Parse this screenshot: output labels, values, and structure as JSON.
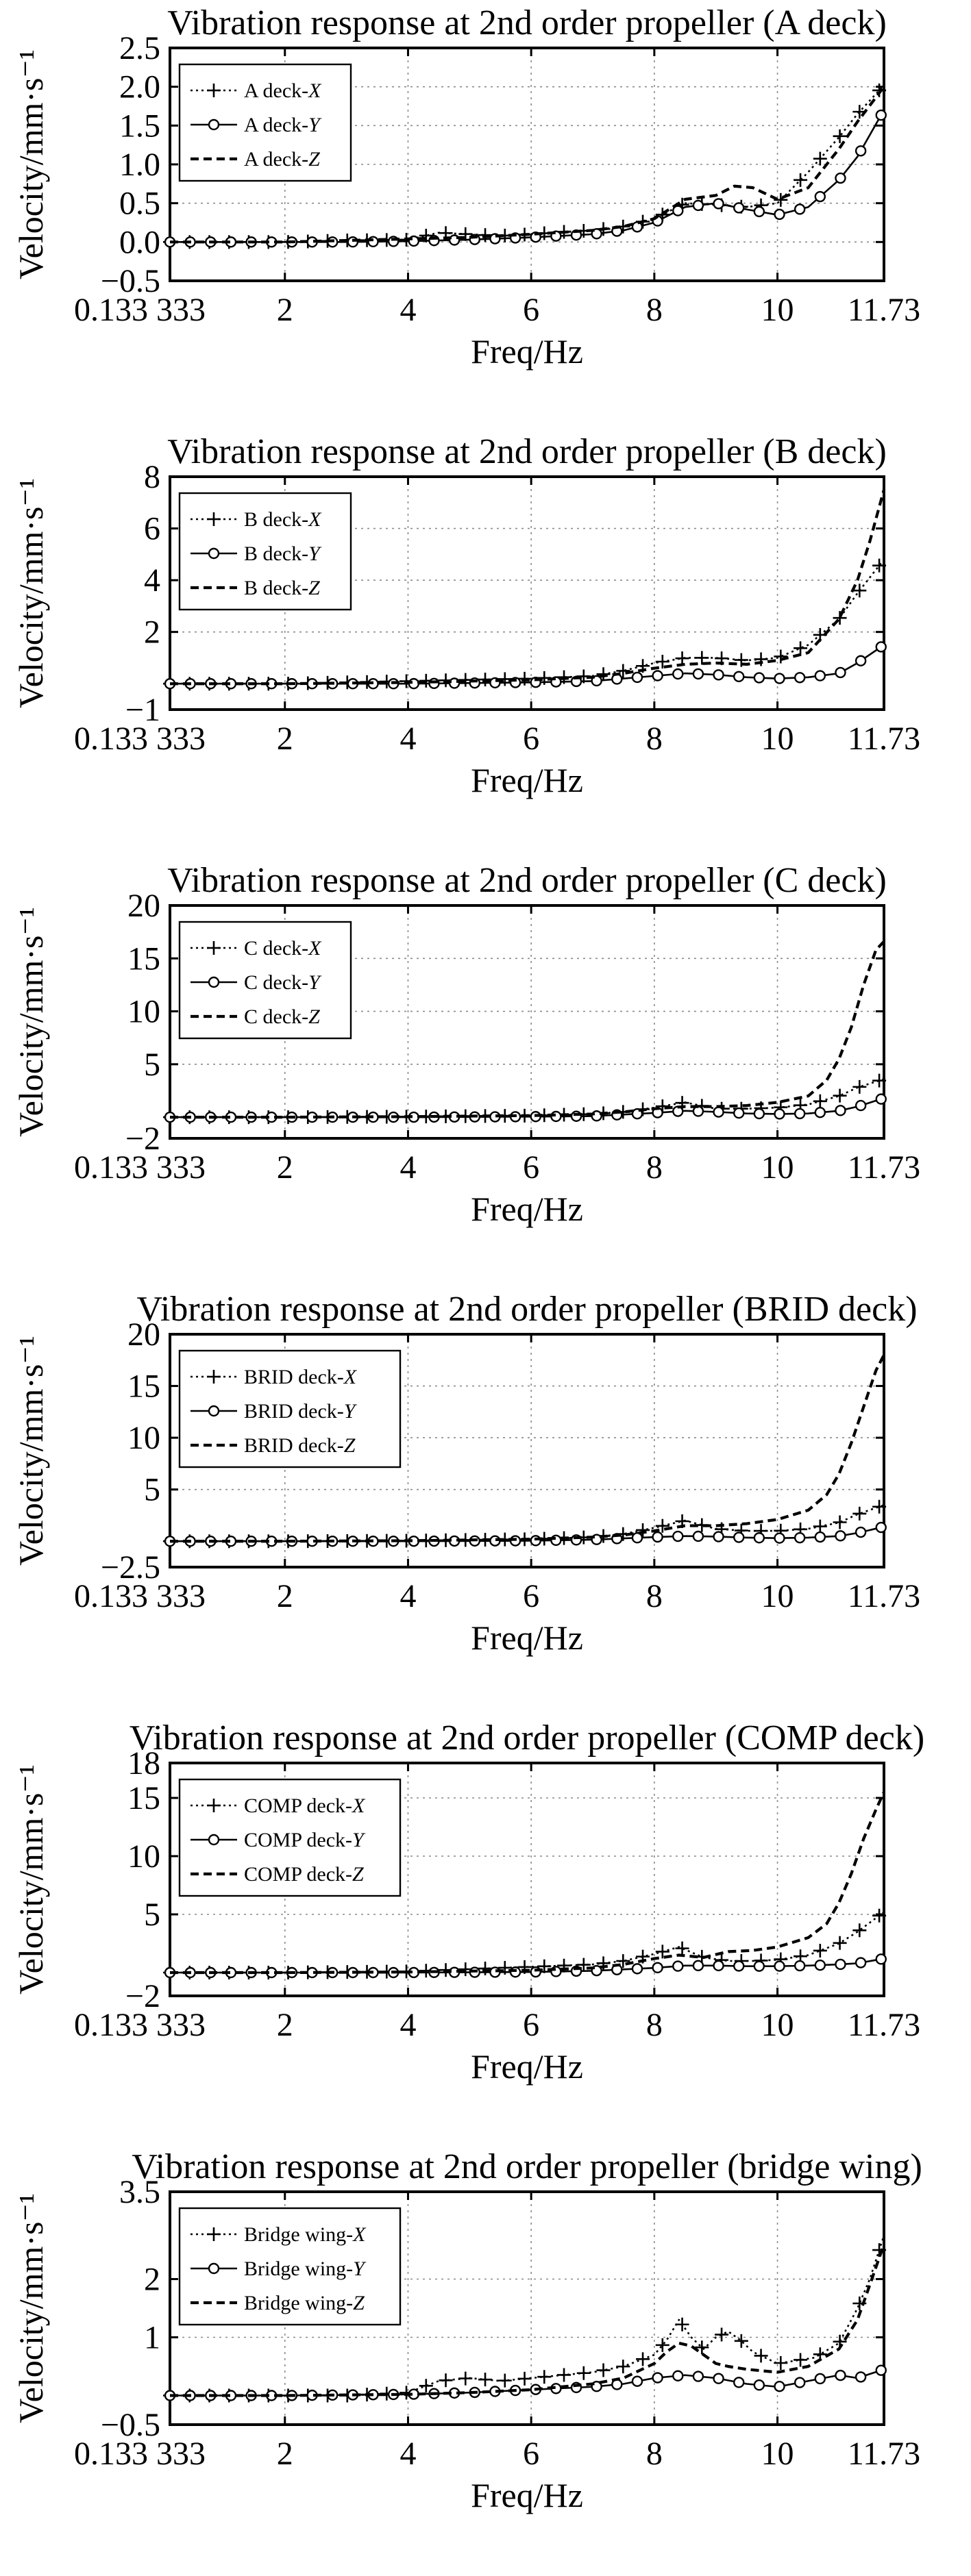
{
  "charts": [
    {
      "type": "line",
      "title": "Vibration response at 2nd order propeller (A deck)",
      "xlabel": "Freq/Hz",
      "ylabel": "Velocity/mm·s⁻¹",
      "xlim": [
        0.133,
        11.73
      ],
      "ylim": [
        -0.5,
        2.5
      ],
      "yticks": [
        "−0.5",
        "0.0",
        "0.5",
        "1.0",
        "1.5",
        "2.0",
        "2.5"
      ],
      "ytick_values": [
        -0.5,
        0,
        0.5,
        1,
        1.5,
        2,
        2.5
      ],
      "xticks": [
        "0.133 333",
        "2",
        "4",
        "6",
        "8",
        "10",
        "11.73"
      ],
      "xtick_values": [
        0.133,
        2,
        4,
        6,
        8,
        10,
        11.73
      ],
      "grid": true,
      "legend_position": "top-left",
      "series": [
        {
          "name_prefix": "A deck-",
          "name_var": "X",
          "style": "plus",
          "x": [
            0.133,
            1,
            2,
            3,
            4,
            4.5,
            5,
            5.5,
            6,
            6.5,
            7,
            7.5,
            8,
            8.5,
            9,
            9.5,
            10,
            10.5,
            11,
            11.3,
            11.73
          ],
          "y": [
            0,
            0,
            0,
            0.02,
            0.03,
            0.12,
            0.1,
            0.08,
            0.1,
            0.13,
            0.15,
            0.2,
            0.3,
            0.5,
            0.48,
            0.45,
            0.5,
            0.9,
            1.35,
            1.65,
            2.02
          ]
        },
        {
          "name_prefix": "A deck-",
          "name_var": "Y",
          "style": "circle",
          "x": [
            0.133,
            1,
            2,
            3,
            4,
            5,
            6,
            7,
            7.5,
            8,
            8.5,
            9,
            9.5,
            10,
            10.5,
            11,
            11.3,
            11.73
          ],
          "y": [
            0,
            0,
            0,
            0,
            0.01,
            0.03,
            0.06,
            0.1,
            0.15,
            0.25,
            0.45,
            0.5,
            0.42,
            0.35,
            0.45,
            0.8,
            1.1,
            1.7
          ]
        },
        {
          "name_prefix": "A deck-",
          "name_var": "Z",
          "style": "dashed",
          "x": [
            0.133,
            1,
            2,
            3,
            4,
            5,
            6,
            7,
            7.5,
            8,
            8.5,
            9,
            9.3,
            9.6,
            10,
            10.5,
            11,
            11.3,
            11.73
          ],
          "y": [
            0,
            0,
            0,
            0.02,
            0.04,
            0.06,
            0.1,
            0.15,
            0.2,
            0.3,
            0.55,
            0.6,
            0.72,
            0.7,
            0.55,
            0.7,
            1.2,
            1.55,
            2.0
          ]
        }
      ]
    },
    {
      "type": "line",
      "title": "Vibration response at 2nd order propeller (B deck)",
      "xlabel": "Freq/Hz",
      "ylabel": "Velocity/mm·s⁻¹",
      "xlim": [
        0.133,
        11.73
      ],
      "ylim": [
        -1,
        8
      ],
      "yticks": [
        "−1",
        "2",
        "4",
        "6",
        "8"
      ],
      "ytick_values": [
        -1,
        2,
        4,
        6,
        8
      ],
      "xticks": [
        "0.133 333",
        "2",
        "4",
        "6",
        "8",
        "10",
        "11.73"
      ],
      "xtick_values": [
        0.133,
        2,
        4,
        6,
        8,
        10,
        11.73
      ],
      "grid": true,
      "legend_position": "top-left",
      "series": [
        {
          "name_prefix": "B deck-",
          "name_var": "X",
          "style": "plus",
          "x": [
            0.133,
            2,
            4,
            6,
            7,
            7.5,
            8,
            8.5,
            9,
            9.5,
            10,
            10.5,
            11,
            11.3,
            11.73
          ],
          "y": [
            0,
            0,
            0.1,
            0.2,
            0.3,
            0.5,
            0.8,
            1.0,
            1.0,
            0.9,
            1.0,
            1.5,
            2.5,
            3.5,
            4.8
          ]
        },
        {
          "name_prefix": "B deck-",
          "name_var": "Y",
          "style": "circle",
          "x": [
            0.133,
            2,
            4,
            6,
            7,
            8,
            8.5,
            9,
            9.5,
            10,
            10.5,
            11,
            11.3,
            11.73
          ],
          "y": [
            0,
            0,
            0,
            0.05,
            0.1,
            0.3,
            0.4,
            0.35,
            0.25,
            0.2,
            0.25,
            0.4,
            0.8,
            1.5
          ]
        },
        {
          "name_prefix": "B deck-",
          "name_var": "Z",
          "style": "dashed",
          "x": [
            0.133,
            2,
            4,
            6,
            7,
            7.5,
            8,
            8.5,
            9,
            9.5,
            10,
            10.5,
            11,
            11.3,
            11.5,
            11.73
          ],
          "y": [
            0,
            0,
            0.05,
            0.15,
            0.25,
            0.4,
            0.6,
            0.75,
            0.8,
            0.75,
            0.9,
            1.2,
            2.5,
            4.0,
            5.5,
            7.5
          ]
        }
      ]
    },
    {
      "type": "line",
      "title": "Vibration response at 2nd order propeller (C deck)",
      "xlabel": "Freq/Hz",
      "ylabel": "Velocity/mm·s⁻¹",
      "xlim": [
        0.133,
        11.73
      ],
      "ylim": [
        -2,
        20
      ],
      "yticks": [
        "−2",
        "5",
        "10",
        "15",
        "20"
      ],
      "ytick_values": [
        -2,
        5,
        10,
        15,
        20
      ],
      "xticks": [
        "0.133 333",
        "2",
        "4",
        "6",
        "8",
        "10",
        "11.73"
      ],
      "xtick_values": [
        0.133,
        2,
        4,
        6,
        8,
        10,
        11.73
      ],
      "grid": true,
      "legend_position": "top-left",
      "series": [
        {
          "name_prefix": "C deck-",
          "name_var": "X",
          "style": "plus",
          "x": [
            0.133,
            2,
            4,
            6,
            7,
            7.5,
            8,
            8.5,
            9,
            9.5,
            10,
            10.5,
            11,
            11.3,
            11.73
          ],
          "y": [
            0,
            0,
            0.05,
            0.15,
            0.3,
            0.5,
            0.9,
            1.4,
            0.8,
            0.8,
            0.9,
            1.2,
            2.0,
            2.8,
            3.6
          ]
        },
        {
          "name_prefix": "C deck-",
          "name_var": "Y",
          "style": "circle",
          "x": [
            0.133,
            2,
            4,
            6,
            7,
            8,
            8.5,
            9,
            9.5,
            10,
            10.5,
            11,
            11.3,
            11.73
          ],
          "y": [
            0,
            0,
            0,
            0.05,
            0.1,
            0.4,
            0.6,
            0.5,
            0.35,
            0.3,
            0.35,
            0.6,
            1.0,
            1.8
          ]
        },
        {
          "name_prefix": "C deck-",
          "name_var": "Z",
          "style": "dashed",
          "x": [
            0.133,
            2,
            4,
            6,
            7,
            7.5,
            8,
            8.5,
            9,
            9.5,
            10,
            10.5,
            10.8,
            11,
            11.2,
            11.4,
            11.6,
            11.73
          ],
          "y": [
            0,
            0,
            0.05,
            0.15,
            0.3,
            0.5,
            0.8,
            1.0,
            1.0,
            1.1,
            1.4,
            2.0,
            3.5,
            5.5,
            8.5,
            12.5,
            15.8,
            16.6
          ]
        }
      ]
    },
    {
      "type": "line",
      "title": "Vibration response at 2nd order propeller (BRID deck)",
      "xlabel": "Freq/Hz",
      "ylabel": "Velocity/mm·s⁻¹",
      "xlim": [
        0.133,
        11.73
      ],
      "ylim": [
        -2.5,
        20
      ],
      "yticks": [
        "−2.5",
        "5",
        "10",
        "15",
        "20"
      ],
      "ytick_values": [
        -2.5,
        5,
        10,
        15,
        20
      ],
      "xticks": [
        "0.133 333",
        "2",
        "4",
        "6",
        "8",
        "10",
        "11.73"
      ],
      "xtick_values": [
        0.133,
        2,
        4,
        6,
        8,
        10,
        11.73
      ],
      "grid": true,
      "legend_position": "top-left",
      "series": [
        {
          "name_prefix": "BRID deck-",
          "name_var": "X",
          "style": "plus",
          "x": [
            0.133,
            2,
            4,
            6,
            7,
            7.5,
            8,
            8.5,
            9,
            9.5,
            10,
            10.5,
            11,
            11.3,
            11.73
          ],
          "y": [
            0,
            0,
            0.05,
            0.2,
            0.4,
            0.7,
            1.3,
            2.0,
            1.2,
            1.0,
            1.0,
            1.2,
            1.8,
            2.6,
            3.5
          ]
        },
        {
          "name_prefix": "BRID deck-",
          "name_var": "Y",
          "style": "circle",
          "x": [
            0.133,
            2,
            4,
            6,
            7,
            8,
            8.5,
            9,
            9.5,
            10,
            10.5,
            11,
            11.3,
            11.73
          ],
          "y": [
            0,
            0,
            0,
            0.05,
            0.15,
            0.4,
            0.5,
            0.45,
            0.35,
            0.3,
            0.35,
            0.5,
            0.8,
            1.4
          ]
        },
        {
          "name_prefix": "BRID deck-",
          "name_var": "Z",
          "style": "dashed",
          "x": [
            0.133,
            2,
            4,
            6,
            7,
            7.5,
            8,
            8.5,
            9,
            9.5,
            10,
            10.5,
            10.8,
            11,
            11.2,
            11.4,
            11.6,
            11.73
          ],
          "y": [
            0,
            0,
            0.05,
            0.2,
            0.4,
            0.6,
            1.0,
            1.5,
            1.5,
            1.7,
            2.1,
            3.0,
            4.5,
            6.5,
            9.5,
            13.0,
            16.5,
            18.0
          ]
        }
      ]
    },
    {
      "type": "line",
      "title": "Vibration response at 2nd order propeller (COMP deck)",
      "xlabel": "Freq/Hz",
      "ylabel": "Velocity/mm·s⁻¹",
      "xlim": [
        0.133,
        11.73
      ],
      "ylim": [
        -2,
        18
      ],
      "yticks": [
        "−2",
        "5",
        "10",
        "15",
        "18"
      ],
      "ytick_values": [
        -2,
        5,
        10,
        15,
        18
      ],
      "xticks": [
        "0.133 333",
        "2",
        "4",
        "6",
        "8",
        "10",
        "11.73"
      ],
      "xtick_values": [
        0.133,
        2,
        4,
        6,
        8,
        10,
        11.73
      ],
      "grid": true,
      "legend_position": "top-left",
      "series": [
        {
          "name_prefix": "COMP deck-",
          "name_var": "X",
          "style": "plus",
          "x": [
            0.133,
            2,
            4,
            5,
            6,
            7,
            7.5,
            8,
            8.4,
            8.8,
            9.2,
            9.6,
            10,
            10.5,
            11,
            11.3,
            11.73
          ],
          "y": [
            0,
            0,
            0.1,
            0.3,
            0.5,
            0.7,
            1.0,
            1.6,
            2.2,
            1.3,
            1.0,
            1.0,
            1.1,
            1.5,
            2.5,
            3.5,
            5.2
          ]
        },
        {
          "name_prefix": "COMP deck-",
          "name_var": "Y",
          "style": "circle",
          "x": [
            0.133,
            2,
            4,
            6,
            7,
            8,
            8.5,
            9,
            9.5,
            10,
            10.5,
            11,
            11.3,
            11.73
          ],
          "y": [
            0,
            0,
            0,
            0.05,
            0.15,
            0.4,
            0.6,
            0.6,
            0.55,
            0.55,
            0.6,
            0.7,
            0.8,
            1.2
          ]
        },
        {
          "name_prefix": "COMP deck-",
          "name_var": "Z",
          "style": "dashed",
          "x": [
            0.133,
            2,
            4,
            6,
            7,
            7.5,
            8,
            8.4,
            8.8,
            9.2,
            9.6,
            10,
            10.5,
            10.8,
            11,
            11.2,
            11.4,
            11.6,
            11.73
          ],
          "y": [
            0,
            0,
            0.05,
            0.2,
            0.4,
            0.7,
            1.2,
            1.5,
            1.3,
            1.8,
            1.9,
            2.2,
            3.0,
            4.2,
            6.0,
            8.5,
            11.5,
            14.0,
            15.5
          ]
        }
      ]
    },
    {
      "type": "line",
      "title": "Vibration response at 2nd order propeller (bridge wing)",
      "xlabel": "Freq/Hz",
      "ylabel": "Velocity/mm·s⁻¹",
      "xlim": [
        0.133,
        11.73
      ],
      "ylim": [
        -0.5,
        3.5
      ],
      "yticks": [
        "−0.5",
        "1",
        "2",
        "3.5"
      ],
      "ytick_values": [
        -0.5,
        1,
        2,
        3.5
      ],
      "xticks": [
        "0.133 333",
        "2",
        "4",
        "6",
        "8",
        "10",
        "11.73"
      ],
      "xtick_values": [
        0.133,
        2,
        4,
        6,
        8,
        10,
        11.73
      ],
      "grid": true,
      "legend_position": "top-left",
      "series": [
        {
          "name_prefix": "Bridge wing-",
          "name_var": "X",
          "style": "plus",
          "x": [
            0.133,
            2,
            3,
            4,
            4.5,
            5,
            5.5,
            6,
            6.5,
            7,
            7.5,
            8,
            8.2,
            8.4,
            8.6,
            8.8,
            9.0,
            9.2,
            9.4,
            9.6,
            9.8,
            10.0,
            10.3,
            10.6,
            11.0,
            11.3,
            11.5,
            11.73
          ],
          "y": [
            0,
            0,
            0,
            0.05,
            0.25,
            0.3,
            0.25,
            0.3,
            0.35,
            0.4,
            0.5,
            0.7,
            0.95,
            1.3,
            1.0,
            0.8,
            1.0,
            1.1,
            0.95,
            0.75,
            0.65,
            0.55,
            0.6,
            0.65,
            0.9,
            1.5,
            2.0,
            2.75
          ]
        },
        {
          "name_prefix": "Bridge wing-",
          "name_var": "Y",
          "style": "circle",
          "x": [
            0.133,
            2,
            4,
            5,
            6,
            7,
            7.5,
            8,
            8.5,
            9,
            9.5,
            10,
            10.5,
            11,
            11.3,
            11.73
          ],
          "y": [
            0,
            0,
            0.02,
            0.05,
            0.1,
            0.15,
            0.2,
            0.3,
            0.35,
            0.3,
            0.2,
            0.15,
            0.25,
            0.35,
            0.3,
            0.45
          ]
        },
        {
          "name_prefix": "Bridge wing-",
          "name_var": "Z",
          "style": "dashed",
          "x": [
            0.133,
            2,
            4,
            5,
            6,
            7,
            7.5,
            8,
            8.2,
            8.4,
            8.6,
            8.8,
            9.0,
            9.2,
            9.5,
            10,
            10.5,
            11,
            11.3,
            11.5,
            11.73
          ],
          "y": [
            0,
            0,
            0.02,
            0.05,
            0.1,
            0.2,
            0.3,
            0.55,
            0.75,
            0.9,
            0.85,
            0.7,
            0.55,
            0.5,
            0.45,
            0.4,
            0.5,
            0.8,
            1.3,
            1.9,
            2.6
          ]
        }
      ]
    }
  ]
}
